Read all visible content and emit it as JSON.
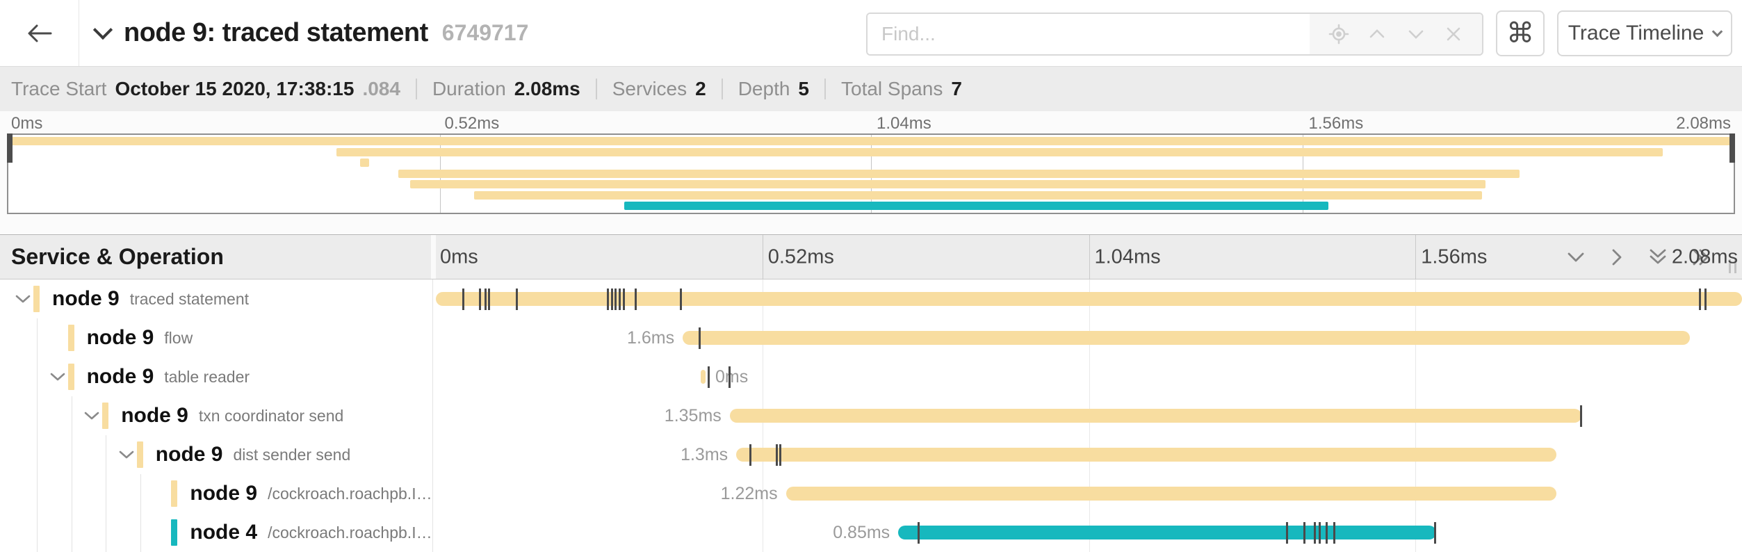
{
  "header": {
    "title": "node 9: traced statement",
    "trace_id": "6749717",
    "find_placeholder": "Find...",
    "shortcut_button": "⌘",
    "view_selector": "Trace Timeline",
    "find_icons": [
      "locate-icon",
      "chevron-up-icon",
      "chevron-down-icon",
      "clear-icon"
    ]
  },
  "stats": [
    {
      "label": "Trace Start",
      "value": "October 15 2020, 17:38:15",
      "suffix": ".084"
    },
    {
      "label": "Duration",
      "value": "2.08ms"
    },
    {
      "label": "Services",
      "value": "2"
    },
    {
      "label": "Depth",
      "value": "5"
    },
    {
      "label": "Total Spans",
      "value": "7"
    }
  ],
  "timeline": {
    "ticks": [
      "0ms",
      "0.52ms",
      "1.04ms",
      "1.56ms",
      "2.08ms"
    ],
    "total_duration": "2.08ms"
  },
  "tree_header": {
    "title": "Service & Operation",
    "controls": [
      "chevron-down-icon",
      "chevron-right-icon",
      "double-chevron-down-icon",
      "double-chevron-right-icon"
    ]
  },
  "colors": {
    "tan": "#F8DDA0",
    "teal": "#17B8BE"
  },
  "minimap": {
    "bars": [
      {
        "color": "tan",
        "start_pct": 0.0,
        "width_pct": 100.0
      },
      {
        "color": "tan",
        "start_pct": 19.0,
        "width_pct": 76.9
      },
      {
        "color": "tan",
        "start_pct": 20.4,
        "width_pct": 0.5
      },
      {
        "color": "tan",
        "start_pct": 22.6,
        "width_pct": 65.0
      },
      {
        "color": "tan",
        "start_pct": 23.3,
        "width_pct": 62.3
      },
      {
        "color": "tan",
        "start_pct": 27.0,
        "width_pct": 58.4
      },
      {
        "color": "teal",
        "start_pct": 35.7,
        "width_pct": 40.8
      }
    ]
  },
  "spans": [
    {
      "service": "node 9",
      "operation": "traced statement",
      "depth": 0,
      "expandable": true,
      "color": "tan",
      "start_pct": 0.0,
      "width_pct": 100.0,
      "label": "",
      "label_side": "none",
      "ticks_pct": [
        2.0,
        3.3,
        3.7,
        4.0,
        6.1,
        13.1,
        13.4,
        13.7,
        14.0,
        14.3,
        15.2,
        18.7,
        96.7,
        97.1
      ]
    },
    {
      "service": "node 9",
      "operation": "flow",
      "depth": 1,
      "expandable": false,
      "color": "tan",
      "start_pct": 18.9,
      "width_pct": 77.1,
      "label": "1.6ms",
      "label_side": "left",
      "ticks_pct": [
        20.1
      ]
    },
    {
      "service": "node 9",
      "operation": "table reader",
      "depth": 1,
      "expandable": true,
      "color": "tan",
      "start_pct": 20.3,
      "width_pct": 0.35,
      "label": "0ms",
      "label_side": "right",
      "ticks_pct": [
        20.8,
        22.4
      ]
    },
    {
      "service": "node 9",
      "operation": "txn coordinator send",
      "depth": 2,
      "expandable": true,
      "color": "tan",
      "start_pct": 22.5,
      "width_pct": 65.2,
      "label": "1.35ms",
      "label_side": "left",
      "ticks_pct": [
        87.6
      ]
    },
    {
      "service": "node 9",
      "operation": "dist sender send",
      "depth": 3,
      "expandable": true,
      "color": "tan",
      "start_pct": 23.0,
      "width_pct": 62.8,
      "label": "1.3ms",
      "label_side": "left",
      "ticks_pct": [
        24.0,
        26.0,
        26.3
      ]
    },
    {
      "service": "node 9",
      "operation": "/cockroach.roachpb.I…",
      "depth": 4,
      "expandable": false,
      "color": "tan",
      "start_pct": 26.8,
      "width_pct": 59.0,
      "label": "1.22ms",
      "label_side": "left",
      "ticks_pct": []
    },
    {
      "service": "node 4",
      "operation": "/cockroach.roachpb.I…",
      "depth": 4,
      "expandable": false,
      "color": "teal",
      "start_pct": 35.4,
      "width_pct": 41.2,
      "label": "0.85ms",
      "label_side": "left",
      "ticks_pct": [
        36.9,
        65.1,
        66.4,
        67.2,
        67.6,
        68.1,
        68.7,
        76.4
      ]
    }
  ]
}
